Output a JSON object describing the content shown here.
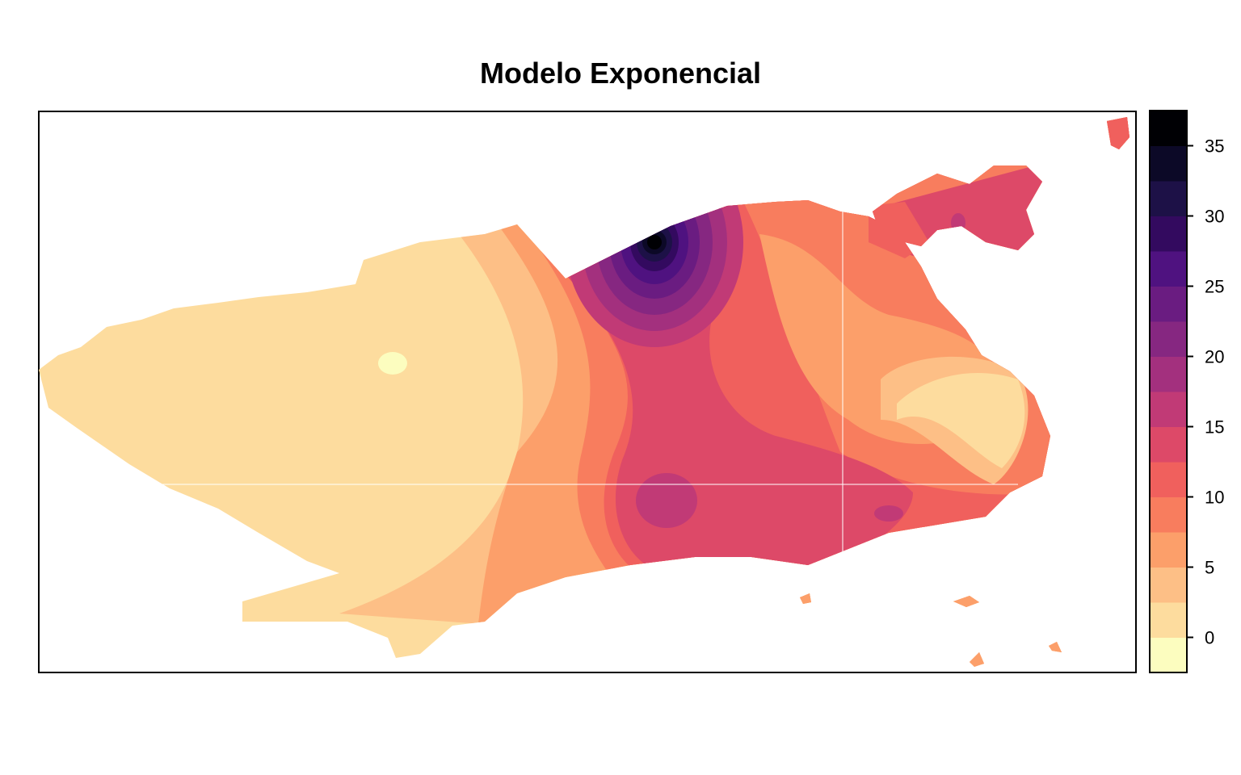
{
  "title": "Modelo Exponencial",
  "legend": {
    "ticks": [
      "35",
      "30",
      "25",
      "20",
      "15",
      "10",
      "5",
      "0"
    ],
    "range": [
      -2.5,
      37.5
    ],
    "breaks": [
      -2.5,
      0,
      2.5,
      5,
      7.5,
      10,
      12.5,
      15,
      17.5,
      20,
      22.5,
      25,
      27.5,
      30,
      32.5,
      35,
      37.5
    ],
    "colors": [
      "#fcfdbf",
      "#fddc9e",
      "#fdbf86",
      "#fc9f6a",
      "#f87d5e",
      "#f0605d",
      "#dd4968",
      "#c13a76",
      "#a3307e",
      "#862781",
      "#6a1c81",
      "#4f1280",
      "#330a5f",
      "#1d1147",
      "#0c0927",
      "#000004"
    ]
  },
  "chart_data": {
    "type": "heatmap",
    "title": "Modelo Exponencial",
    "colorbar_ticks": [
      0,
      5,
      10,
      15,
      20,
      25,
      30,
      35
    ],
    "colorbar_range": [
      -2.5,
      37.5
    ]
  }
}
